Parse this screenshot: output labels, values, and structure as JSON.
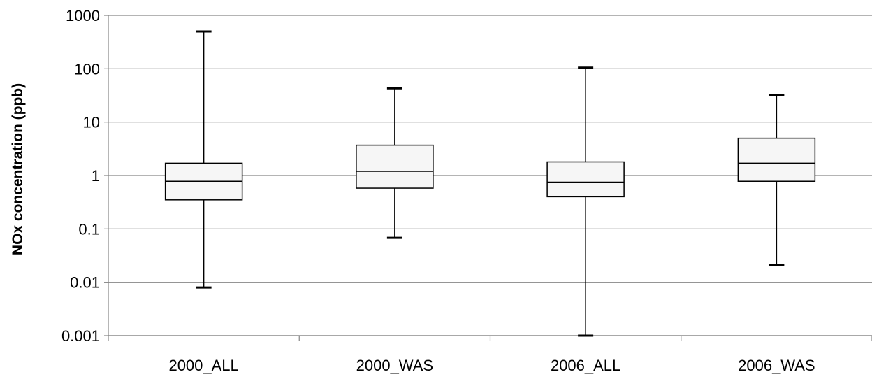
{
  "chart_data": {
    "type": "box",
    "title": "",
    "xlabel": "",
    "ylabel": "NOx concentration (ppb)",
    "yscale": "log",
    "ylim": [
      0.001,
      1000
    ],
    "yticks": [
      1000,
      100,
      10,
      1,
      0.1,
      0.01,
      0.001
    ],
    "ytick_labels": [
      "1000",
      "100",
      "10",
      "1",
      "0.1",
      "0.01",
      "0.001"
    ],
    "grid": true,
    "categories": [
      "2000_ALL",
      "2000_WAS",
      "2006_ALL",
      "2006_WAS"
    ],
    "boxes": [
      {
        "category": "2000_ALL",
        "min": 0.008,
        "q1": 0.35,
        "median": 0.78,
        "q3": 1.7,
        "max": 500
      },
      {
        "category": "2000_WAS",
        "min": 0.068,
        "q1": 0.58,
        "median": 1.2,
        "q3": 3.7,
        "max": 43
      },
      {
        "category": "2006_ALL",
        "min": 0.001,
        "q1": 0.4,
        "median": 0.75,
        "q3": 1.8,
        "max": 105
      },
      {
        "category": "2006_WAS",
        "min": 0.021,
        "q1": 0.78,
        "median": 1.7,
        "q3": 5.0,
        "max": 32
      }
    ],
    "colors": {
      "box_fill": "#f6f6f6",
      "stroke": "#000000",
      "grid": "#868686",
      "axis": "#868686"
    }
  }
}
